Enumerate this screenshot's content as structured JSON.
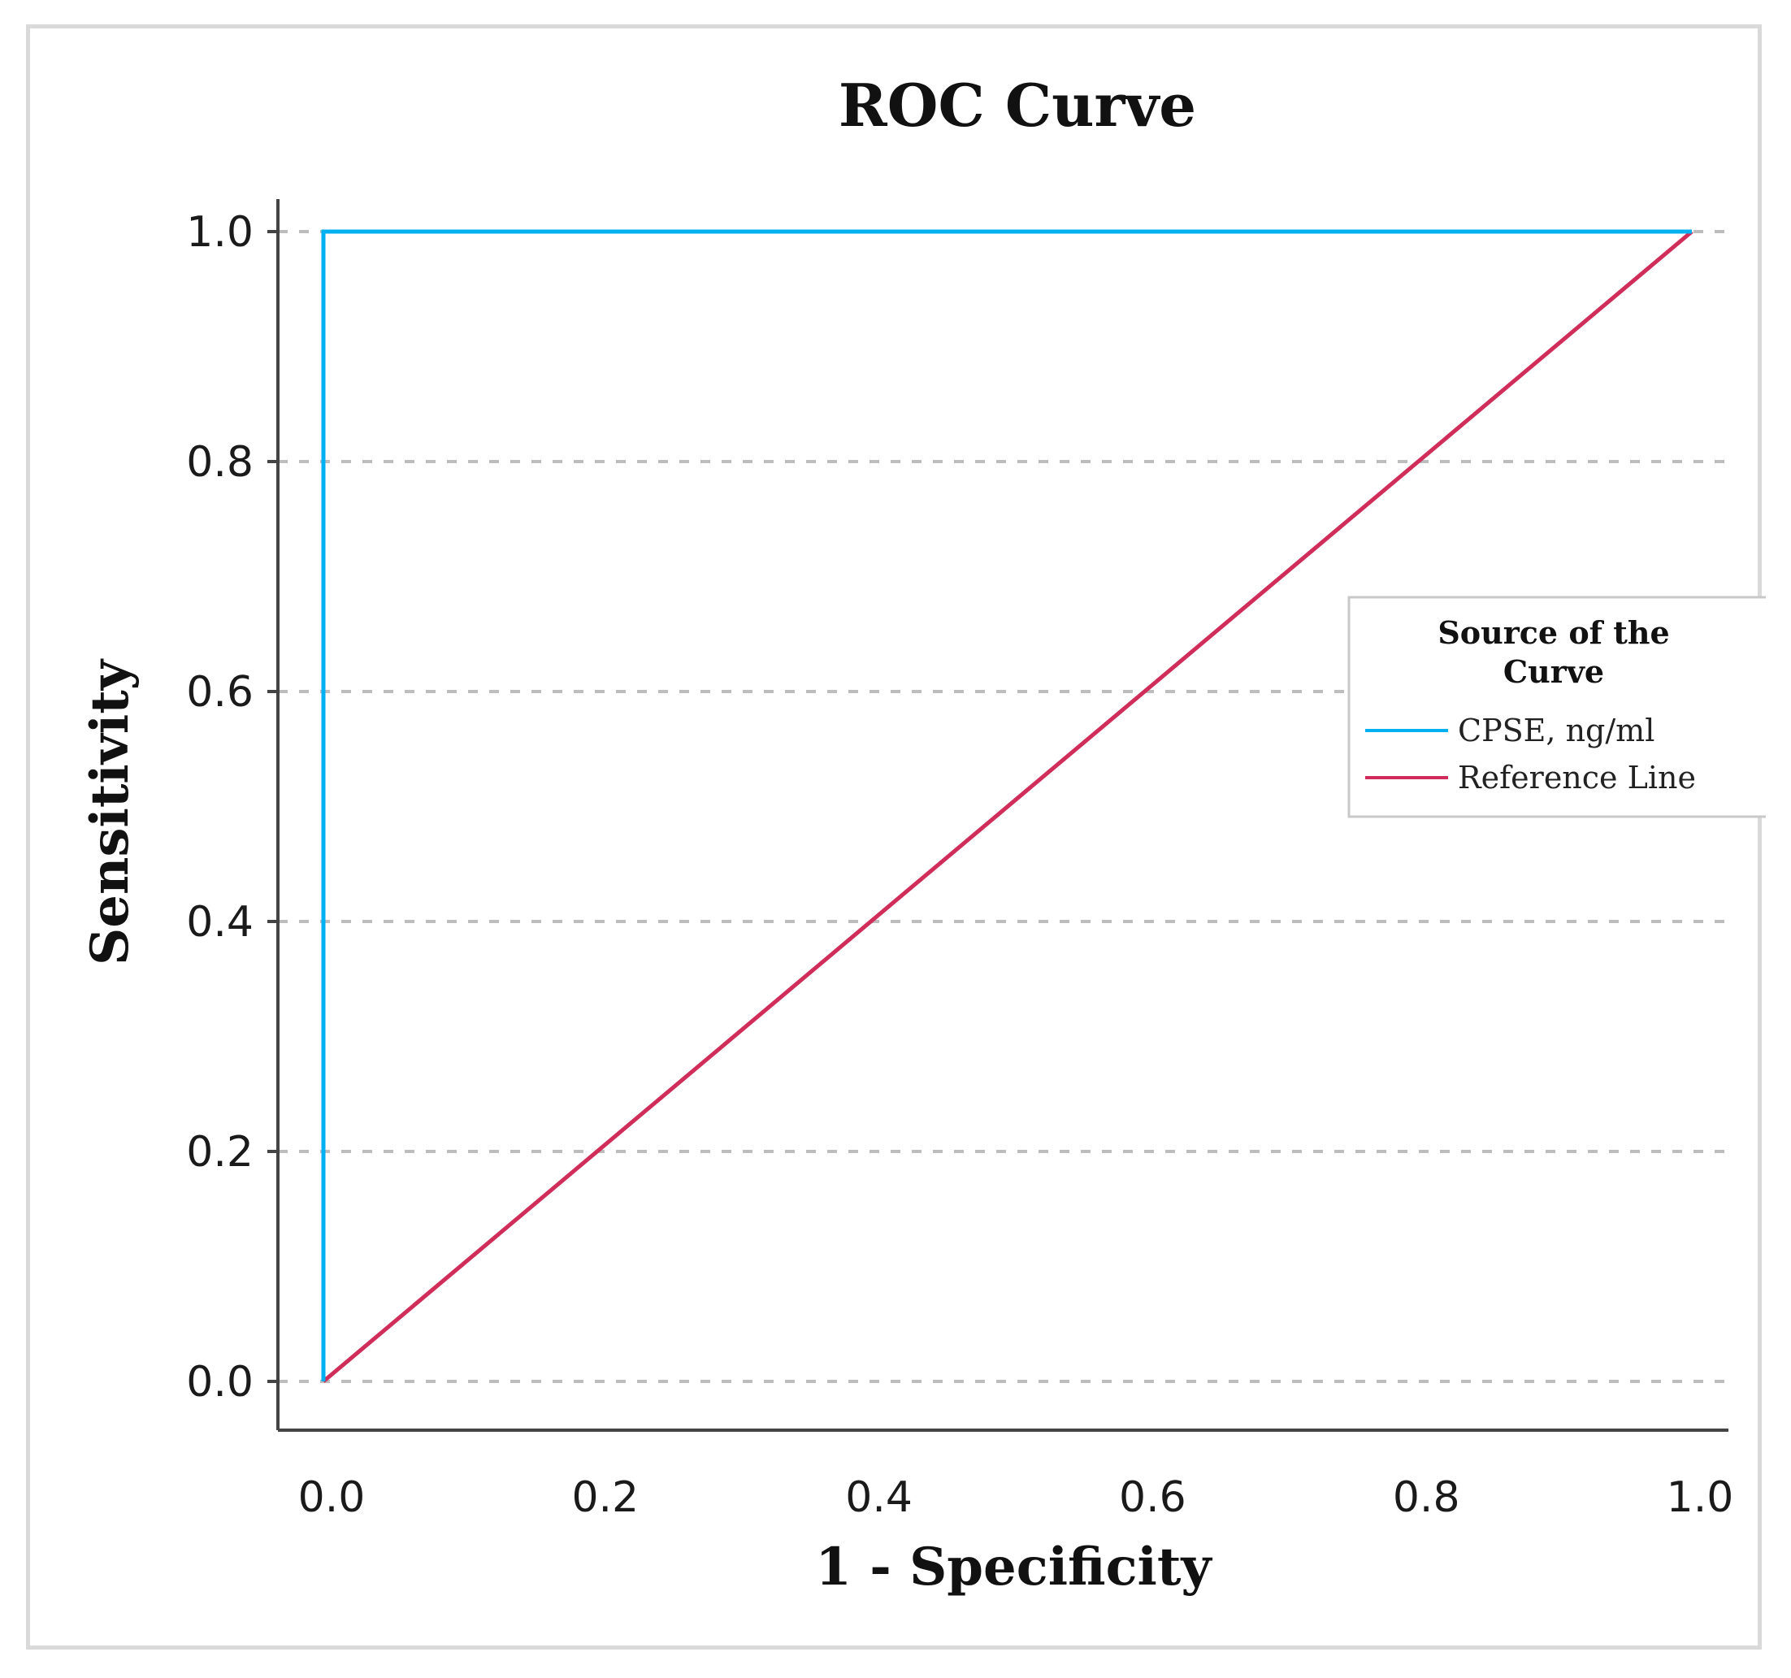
{
  "chart_data": {
    "type": "line",
    "title": "ROC Curve",
    "xlabel": "1 - Specificity",
    "ylabel": "Sensitivity",
    "xlim": [
      0,
      1
    ],
    "ylim": [
      0,
      1
    ],
    "xticks": [
      "0.0",
      "0.2",
      "0.4",
      "0.6",
      "0.8",
      "1.0"
    ],
    "yticks": [
      "0.0",
      "0.2",
      "0.4",
      "0.6",
      "0.8",
      "1.0"
    ],
    "grid": "horizontal-dashed",
    "legend": {
      "title_line1": "Source of the",
      "title_line2": "Curve",
      "placement": "right"
    },
    "series": [
      {
        "name": "CPSE, ng/ml",
        "color": "#00b0f0",
        "x": [
          0,
          0,
          1
        ],
        "y": [
          0,
          1,
          1
        ]
      },
      {
        "name": "Reference Line",
        "color": "#d02d5a",
        "x": [
          0,
          1
        ],
        "y": [
          0,
          1
        ]
      }
    ]
  }
}
